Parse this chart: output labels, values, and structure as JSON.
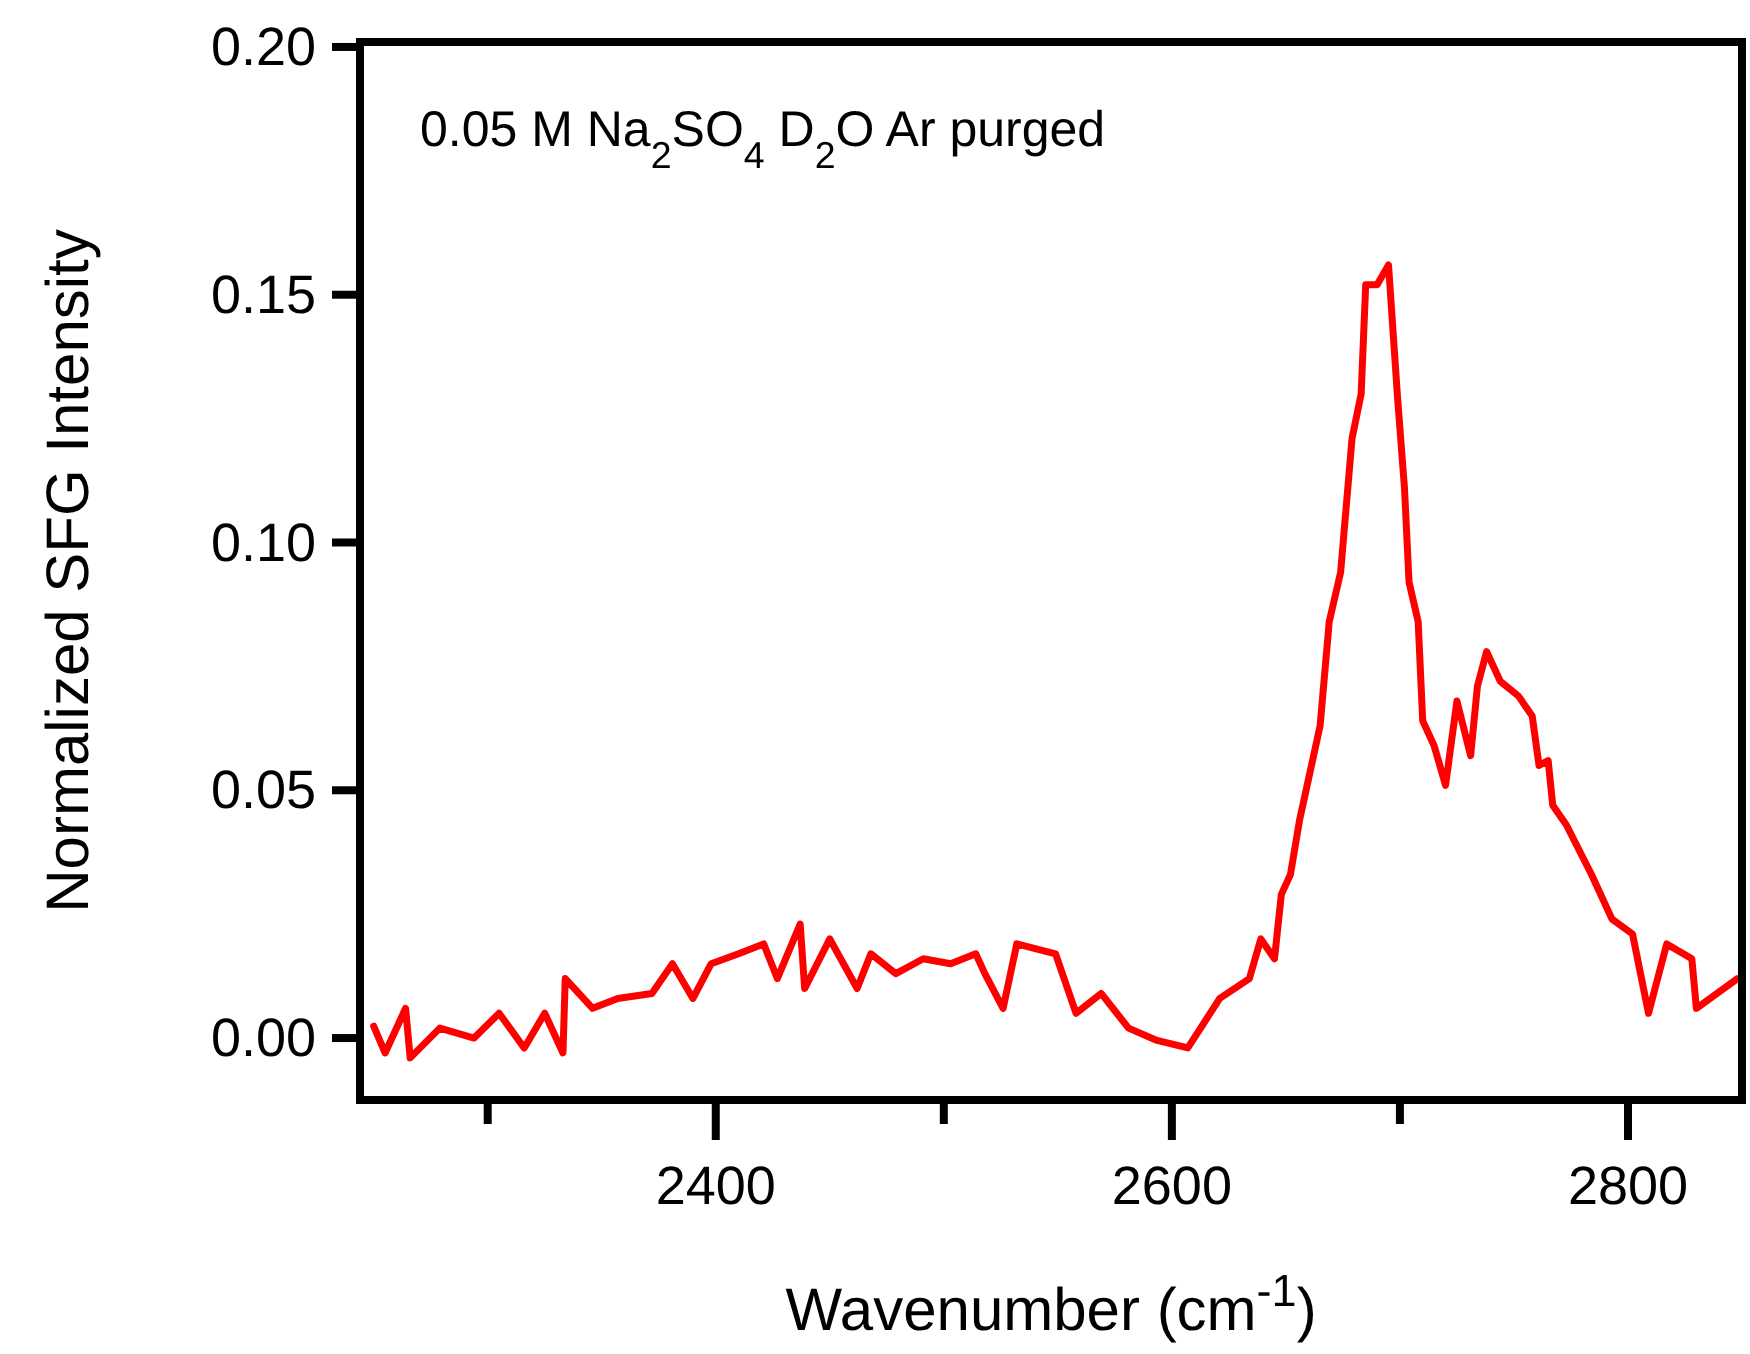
{
  "chart_data": {
    "type": "line",
    "xlabel": "Wavenumber (cm$^{-1}$)",
    "ylabel": "Normalized SFG Intensity",
    "annotations": [
      "0.05 M Na$_{2}$SO$_{4}$ D$_{2}$O Ar purged"
    ],
    "xlim": [
      2244,
      2850
    ],
    "ylim": [
      -0.0125,
      0.201
    ],
    "xticks": [
      {
        "value": 2300,
        "label": null
      },
      2400,
      {
        "value": 2500,
        "label": null
      },
      2600,
      {
        "value": 2700,
        "label": null
      },
      2800
    ],
    "yticks": [
      {
        "value": 0,
        "label": "0.00"
      },
      {
        "value": 0.05,
        "label": "0.05"
      },
      {
        "value": 0.1,
        "label": "0.10"
      },
      {
        "value": 0.15,
        "label": "0.15"
      },
      {
        "value": 0.2,
        "label": "0.20"
      }
    ],
    "grid": false,
    "line_style": "solid",
    "marker": "none",
    "series": [
      {
        "color": "#ff0000",
        "x": [
          2250,
          2255,
          2264,
          2266,
          2279,
          2294,
          2305,
          2316,
          2325,
          2333,
          2334,
          2346,
          2357,
          2372,
          2381,
          2390,
          2398,
          2410,
          2421,
          2427,
          2437,
          2439,
          2450,
          2462,
          2468,
          2479,
          2491,
          2503,
          2514,
          2518,
          2526,
          2532,
          2549,
          2558,
          2569,
          2581,
          2593,
          2607,
          2621,
          2634,
          2639,
          2645,
          2648,
          2652,
          2656,
          2665,
          2669,
          2674,
          2679,
          2683,
          2685,
          2690,
          2695,
          2699,
          2702,
          2704,
          2708,
          2710,
          2715,
          2720,
          2725,
          2731,
          2734,
          2738,
          2744,
          2752,
          2758,
          2761,
          2765,
          2767,
          2773,
          2784,
          2793,
          2802,
          2809,
          2817,
          2828,
          2830,
          2848
        ],
        "values": [
          0.0024,
          -0.003,
          0.006,
          -0.004,
          0.002,
          0,
          0.005,
          -0.002,
          0.005,
          -0.003,
          0.012,
          0.006,
          0.008,
          0.009,
          0.015,
          0.008,
          0.015,
          0.017,
          0.019,
          0.012,
          0.023,
          0.01,
          0.02,
          0.01,
          0.017,
          0.013,
          0.016,
          0.015,
          0.017,
          0.013,
          0.006,
          0.019,
          0.017,
          0.005,
          0.009,
          0.002,
          -0.0004,
          -0.002,
          0.008,
          0.012,
          0.02,
          0.016,
          0.029,
          0.033,
          0.044,
          0.063,
          0.084,
          0.094,
          0.121,
          0.13,
          0.152,
          0.152,
          0.156,
          0.129,
          0.111,
          0.092,
          0.084,
          0.064,
          0.059,
          0.051,
          0.068,
          0.057,
          0.071,
          0.078,
          0.072,
          0.069,
          0.065,
          0.055,
          0.056,
          0.047,
          0.043,
          0.033,
          0.024,
          0.021,
          0.005,
          0.019,
          0.016,
          0.006,
          0.012
        ]
      }
    ]
  }
}
